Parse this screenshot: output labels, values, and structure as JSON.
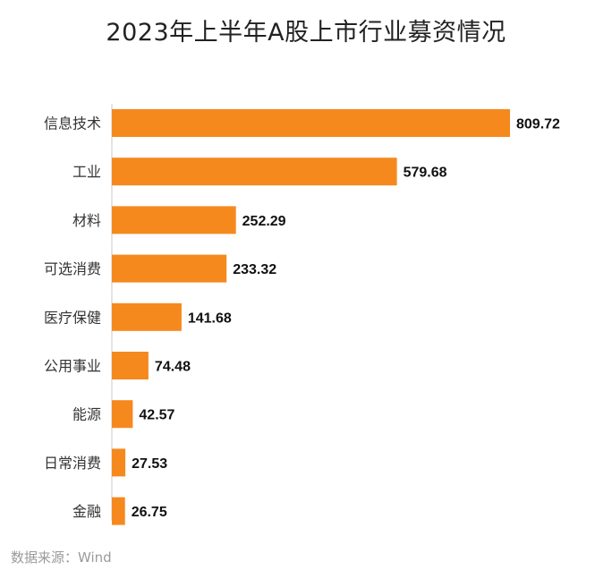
{
  "chart_data": {
    "type": "bar",
    "orientation": "horizontal",
    "title": "2023年上半年A股上市行业募资情况",
    "categories": [
      "信息技术",
      "工业",
      "材料",
      "可选消费",
      "医疗保健",
      "公用事业",
      "能源",
      "日常消费",
      "金融"
    ],
    "values": [
      809.72,
      579.68,
      252.29,
      233.32,
      141.68,
      74.48,
      42.57,
      27.53,
      26.75
    ],
    "value_labels": [
      "809.72",
      "579.68",
      "252.29",
      "233.32",
      "141.68",
      "74.48",
      "42.57",
      "27.53",
      "26.75"
    ],
    "xlim": [
      0,
      809.72
    ],
    "bar_color": "#f5891e",
    "grid": false,
    "legend": "none",
    "data_labels": true
  },
  "source": "数据来源：Wind"
}
